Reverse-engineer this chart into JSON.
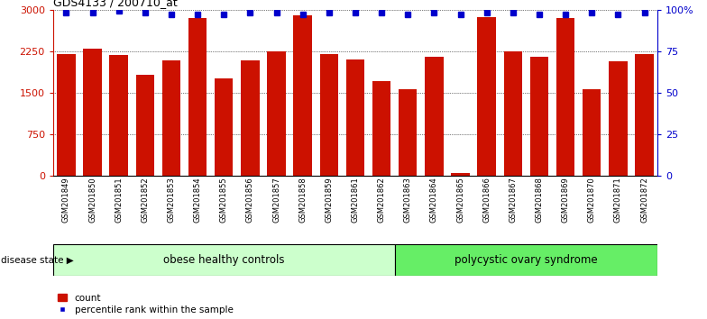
{
  "title": "GDS4133 / 200710_at",
  "samples": [
    "GSM201849",
    "GSM201850",
    "GSM201851",
    "GSM201852",
    "GSM201853",
    "GSM201854",
    "GSM201855",
    "GSM201856",
    "GSM201857",
    "GSM201858",
    "GSM201859",
    "GSM201861",
    "GSM201862",
    "GSM201863",
    "GSM201864",
    "GSM201865",
    "GSM201866",
    "GSM201867",
    "GSM201868",
    "GSM201869",
    "GSM201870",
    "GSM201871",
    "GSM201872"
  ],
  "counts": [
    2200,
    2300,
    2175,
    1820,
    2080,
    2850,
    1750,
    2080,
    2250,
    2900,
    2200,
    2100,
    1700,
    1560,
    2140,
    50,
    2860,
    2250,
    2150,
    2850,
    1560,
    2060,
    2200
  ],
  "percentiles_pct": [
    98,
    98,
    99,
    98,
    97,
    97,
    97,
    98,
    98,
    97,
    98,
    98,
    98,
    97,
    98,
    97,
    98,
    98,
    97,
    97,
    98,
    97,
    98
  ],
  "bar_color": "#cc1100",
  "dot_color": "#0000cc",
  "group1_label": "obese healthy controls",
  "group2_label": "polycystic ovary syndrome",
  "group1_count": 13,
  "group2_count": 10,
  "group1_color": "#ccffcc",
  "group2_color": "#66ee66",
  "ylim_left": [
    0,
    3000
  ],
  "ylim_right": [
    0,
    100
  ],
  "yticks_left": [
    0,
    750,
    1500,
    2250,
    3000
  ],
  "yticks_right": [
    0,
    25,
    50,
    75,
    100
  ],
  "yticklabels_right": [
    "0",
    "25",
    "50",
    "75",
    "100%"
  ],
  "legend_count_label": "count",
  "legend_pct_label": "percentile rank within the sample",
  "disease_state_label": "disease state",
  "background_color": "#ffffff"
}
